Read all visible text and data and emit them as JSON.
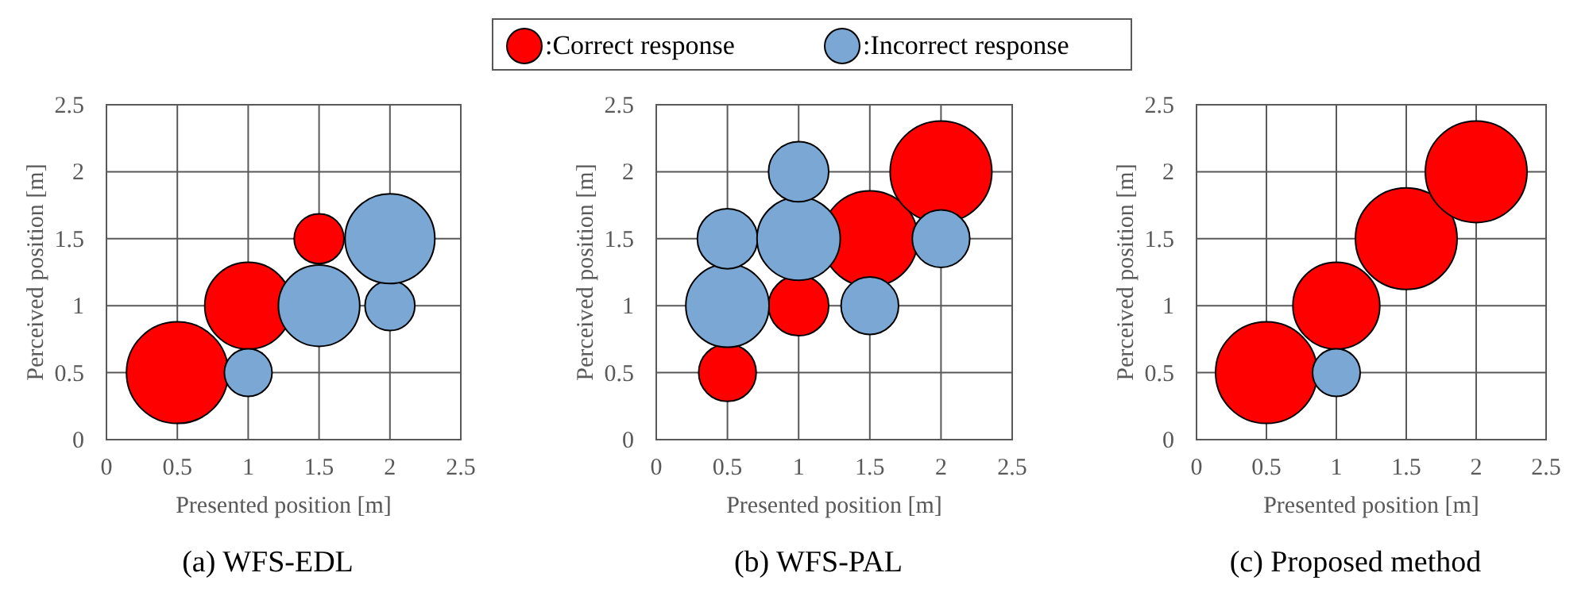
{
  "chart_data": [
    {
      "type": "bubble",
      "title": "(a) WFS-EDL",
      "xlabel": "Presented position [m]",
      "ylabel": "Perceived position [m]",
      "xlim": [
        0,
        2.5
      ],
      "ylim": [
        0,
        2.5
      ],
      "xticks": [
        0,
        0.5,
        1,
        1.5,
        2,
        2.5
      ],
      "yticks": [
        0,
        0.5,
        1,
        1.5,
        2,
        2.5
      ],
      "grid": true,
      "legend": "top",
      "series": [
        {
          "name": ":Correct response",
          "color": "#ff0000",
          "x": [
            0.5,
            1,
            1.5
          ],
          "values": [
            0.5,
            1,
            1.5
          ],
          "sizes": [
            1,
            0.73,
            0.24
          ]
        },
        {
          "name": ":Incorrect response",
          "color": "#7ba7d4",
          "x": [
            1,
            1.5,
            2,
            2
          ],
          "values": [
            0.5,
            1,
            1,
            1.5
          ],
          "sizes": [
            0.22,
            0.64,
            0.24,
            0.78
          ]
        }
      ]
    },
    {
      "type": "bubble",
      "title": "(b) WFS-PAL",
      "xlabel": "Presented position [m]",
      "ylabel": "Perceived position [m]",
      "xlim": [
        0,
        2.5
      ],
      "ylim": [
        0,
        2.5
      ],
      "xticks": [
        0,
        0.5,
        1,
        1.5,
        2,
        2.5
      ],
      "yticks": [
        0,
        0.5,
        1,
        1.5,
        2,
        2.5
      ],
      "grid": true,
      "series": [
        {
          "name": ":Correct response",
          "color": "#ff0000",
          "x": [
            0.5,
            1,
            1.5,
            2
          ],
          "values": [
            0.5,
            1,
            1.5,
            2
          ],
          "sizes": [
            0.32,
            0.35,
            0.89,
            1
          ]
        },
        {
          "name": ":Incorrect response",
          "color": "#7ba7d4",
          "x": [
            0.5,
            0.5,
            1,
            1,
            1.5,
            2
          ],
          "values": [
            1,
            1.5,
            1.5,
            2,
            1,
            1.5
          ],
          "sizes": [
            0.67,
            0.35,
            0.67,
            0.35,
            0.32,
            0.32
          ]
        }
      ]
    },
    {
      "type": "bubble",
      "title": "(c) Proposed method",
      "xlabel": "Presented position [m]",
      "ylabel": "Perceived position [m]",
      "xlim": [
        0,
        2.5
      ],
      "ylim": [
        0,
        2.5
      ],
      "xticks": [
        0,
        0.5,
        1,
        1.5,
        2,
        2.5
      ],
      "yticks": [
        0,
        0.5,
        1,
        1.5,
        2,
        2.5
      ],
      "grid": true,
      "series": [
        {
          "name": ":Correct response",
          "color": "#ff0000",
          "x": [
            0.5,
            1,
            1.5,
            2
          ],
          "values": [
            0.5,
            1,
            1.5,
            2
          ],
          "sizes": [
            1,
            0.73,
            1,
            1
          ]
        },
        {
          "name": ":Incorrect response",
          "color": "#7ba7d4",
          "x": [
            1
          ],
          "values": [
            0.5
          ],
          "sizes": [
            0.22
          ]
        }
      ]
    }
  ]
}
